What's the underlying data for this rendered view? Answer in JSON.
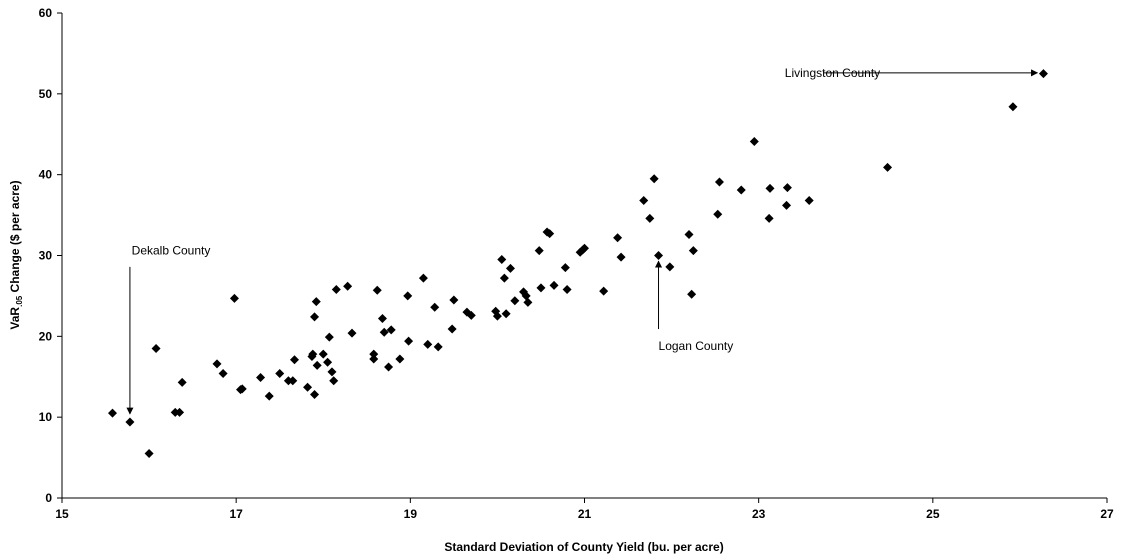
{
  "chart_data": {
    "type": "scatter",
    "title": "",
    "xlabel": "Standard Deviation of County Yield (bu. per acre)",
    "ylabel_parts": {
      "pre": "VaR",
      "sub": ".05",
      "post": " Change ($ per acre)"
    },
    "xlim": [
      15,
      27
    ],
    "ylim": [
      0,
      60
    ],
    "xticks": [
      15,
      17,
      19,
      21,
      23,
      25,
      27
    ],
    "yticks": [
      0,
      10,
      20,
      30,
      40,
      50,
      60
    ],
    "grid": false,
    "legend": "none",
    "marker_color": "#000000",
    "points": [
      [
        15.58,
        10.5
      ],
      [
        15.78,
        9.4
      ],
      [
        16.0,
        5.5
      ],
      [
        16.08,
        18.5
      ],
      [
        16.3,
        10.6
      ],
      [
        16.35,
        10.6
      ],
      [
        16.38,
        14.3
      ],
      [
        16.78,
        16.6
      ],
      [
        16.85,
        15.4
      ],
      [
        16.98,
        24.7
      ],
      [
        17.05,
        13.4
      ],
      [
        17.07,
        13.5
      ],
      [
        17.28,
        14.9
      ],
      [
        17.38,
        12.6
      ],
      [
        17.5,
        15.4
      ],
      [
        17.6,
        14.5
      ],
      [
        17.65,
        14.5
      ],
      [
        17.67,
        17.1
      ],
      [
        17.82,
        13.7
      ],
      [
        17.87,
        17.5
      ],
      [
        17.88,
        17.8
      ],
      [
        17.9,
        12.8
      ],
      [
        17.9,
        22.4
      ],
      [
        17.92,
        24.3
      ],
      [
        17.93,
        16.4
      ],
      [
        18.0,
        17.8
      ],
      [
        18.05,
        16.8
      ],
      [
        18.07,
        19.9
      ],
      [
        18.1,
        15.6
      ],
      [
        18.12,
        14.5
      ],
      [
        18.15,
        25.8
      ],
      [
        18.28,
        26.2
      ],
      [
        18.33,
        20.4
      ],
      [
        18.58,
        17.8
      ],
      [
        18.58,
        17.2
      ],
      [
        18.62,
        25.7
      ],
      [
        18.68,
        22.2
      ],
      [
        18.7,
        20.5
      ],
      [
        18.75,
        16.2
      ],
      [
        18.78,
        20.8
      ],
      [
        18.88,
        17.2
      ],
      [
        18.97,
        25.0
      ],
      [
        18.98,
        19.4
      ],
      [
        19.15,
        27.2
      ],
      [
        19.2,
        19.0
      ],
      [
        19.28,
        23.6
      ],
      [
        19.32,
        18.7
      ],
      [
        19.48,
        20.9
      ],
      [
        19.5,
        24.5
      ],
      [
        19.65,
        23.0
      ],
      [
        19.7,
        22.6
      ],
      [
        19.98,
        23.1
      ],
      [
        20.0,
        22.5
      ],
      [
        20.05,
        29.5
      ],
      [
        20.08,
        27.2
      ],
      [
        20.1,
        22.8
      ],
      [
        20.15,
        28.4
      ],
      [
        20.2,
        24.4
      ],
      [
        20.3,
        25.5
      ],
      [
        20.33,
        25.0
      ],
      [
        20.35,
        24.2
      ],
      [
        20.48,
        30.6
      ],
      [
        20.5,
        26.0
      ],
      [
        20.57,
        32.9
      ],
      [
        20.6,
        32.7
      ],
      [
        20.65,
        26.3
      ],
      [
        20.78,
        28.5
      ],
      [
        20.8,
        25.8
      ],
      [
        20.95,
        30.4
      ],
      [
        20.98,
        30.7
      ],
      [
        21.0,
        30.9
      ],
      [
        21.22,
        25.6
      ],
      [
        21.38,
        32.2
      ],
      [
        21.42,
        29.8
      ],
      [
        21.68,
        36.8
      ],
      [
        21.75,
        34.6
      ],
      [
        21.8,
        39.5
      ],
      [
        21.85,
        30.0
      ],
      [
        21.98,
        28.6
      ],
      [
        22.2,
        32.6
      ],
      [
        22.23,
        25.2
      ],
      [
        22.25,
        30.6
      ],
      [
        22.53,
        35.1
      ],
      [
        22.55,
        39.1
      ],
      [
        22.8,
        38.1
      ],
      [
        22.95,
        44.1
      ],
      [
        23.12,
        34.6
      ],
      [
        23.13,
        38.3
      ],
      [
        23.32,
        36.2
      ],
      [
        23.33,
        38.4
      ],
      [
        23.58,
        36.8
      ],
      [
        24.48,
        40.9
      ],
      [
        25.92,
        48.4
      ],
      [
        26.27,
        52.5
      ]
    ],
    "annotations": [
      {
        "text": "Livingston County",
        "label_x": 23.3,
        "label_y": 52.6,
        "arrow_from": [
          23.75,
          52.6
        ],
        "arrow_to": [
          26.2,
          52.6
        ]
      },
      {
        "text": "Dekalb County",
        "label_x": 15.8,
        "label_y": 30.6,
        "arrow_from": [
          15.78,
          28.6
        ],
        "arrow_to": [
          15.78,
          10.4
        ]
      },
      {
        "text": "Logan County",
        "label_x": 21.85,
        "label_y": 18.8,
        "arrow_from": [
          21.85,
          20.9
        ],
        "arrow_to": [
          21.85,
          29.3
        ]
      }
    ]
  }
}
